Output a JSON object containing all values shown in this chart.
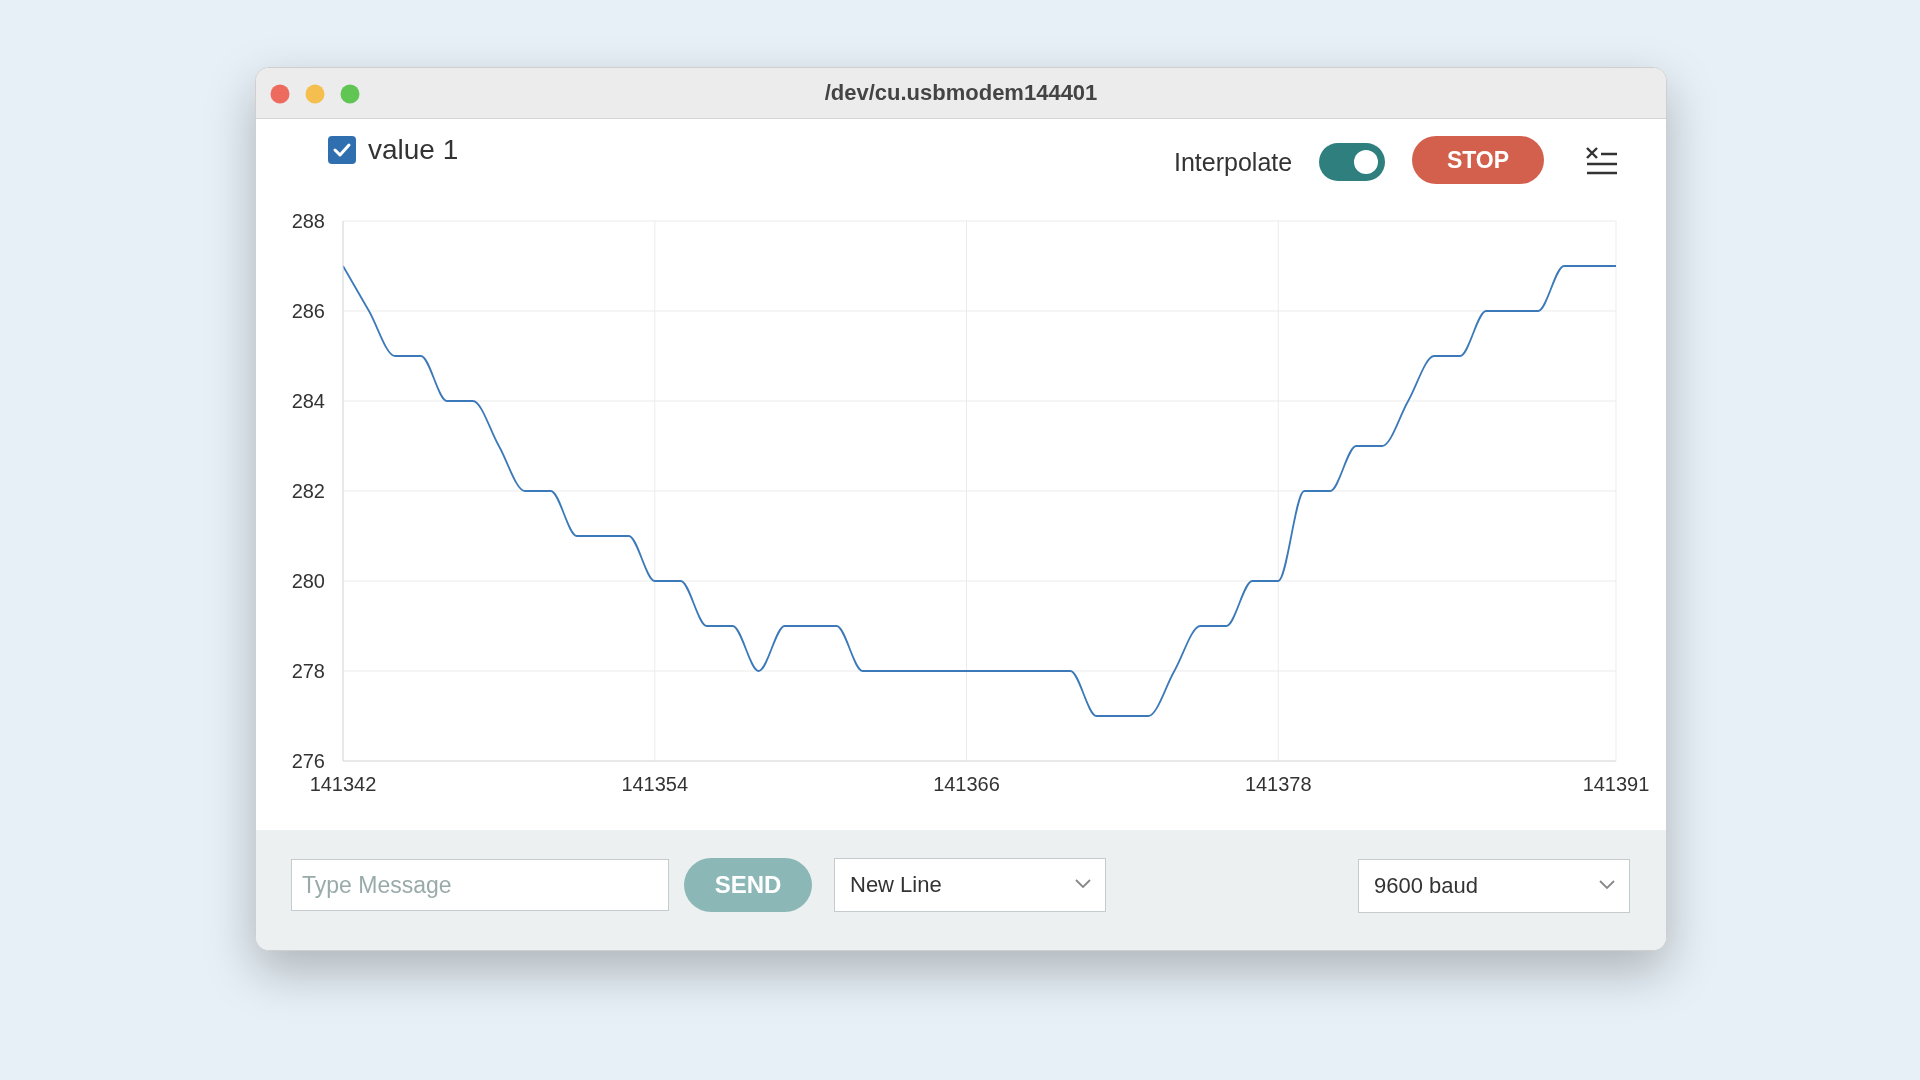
{
  "chart_data": {
    "type": "line",
    "title": "/dev/cu.usbmodem144401",
    "x": [
      141342,
      141343,
      141344,
      141345,
      141346,
      141347,
      141348,
      141349,
      141350,
      141351,
      141352,
      141353,
      141354,
      141355,
      141356,
      141357,
      141358,
      141359,
      141360,
      141361,
      141362,
      141363,
      141364,
      141365,
      141366,
      141367,
      141368,
      141369,
      141370,
      141371,
      141372,
      141373,
      141374,
      141375,
      141376,
      141377,
      141378,
      141379,
      141380,
      141381,
      141382,
      141383,
      141384,
      141385,
      141386,
      141387,
      141388,
      141389,
      141390,
      141391
    ],
    "series": [
      {
        "name": "value 1",
        "color": "#3b79b9",
        "values": [
          287,
          286,
          285,
          285,
          284,
          284,
          283,
          282,
          282,
          281,
          281,
          281,
          280,
          280,
          279,
          279,
          278,
          279,
          279,
          279,
          278,
          278,
          278,
          278,
          278,
          278,
          278,
          278,
          278,
          277,
          277,
          277,
          278,
          279,
          279,
          280,
          280,
          282,
          282,
          283,
          283,
          284,
          285,
          285,
          286,
          286,
          286,
          287,
          287,
          287
        ]
      }
    ],
    "xlim": [
      141342,
      141391
    ],
    "xticks": [
      141342,
      141354,
      141366,
      141378,
      141391
    ],
    "ylim": [
      276,
      288
    ],
    "yticks": [
      276,
      278,
      280,
      282,
      284,
      286,
      288
    ],
    "grid": true,
    "legend": "top left",
    "marker": "none",
    "annotations": [
      "Interpolate",
      "STOP",
      "Type Message",
      "SEND",
      "New Line",
      "9600 baud"
    ]
  }
}
